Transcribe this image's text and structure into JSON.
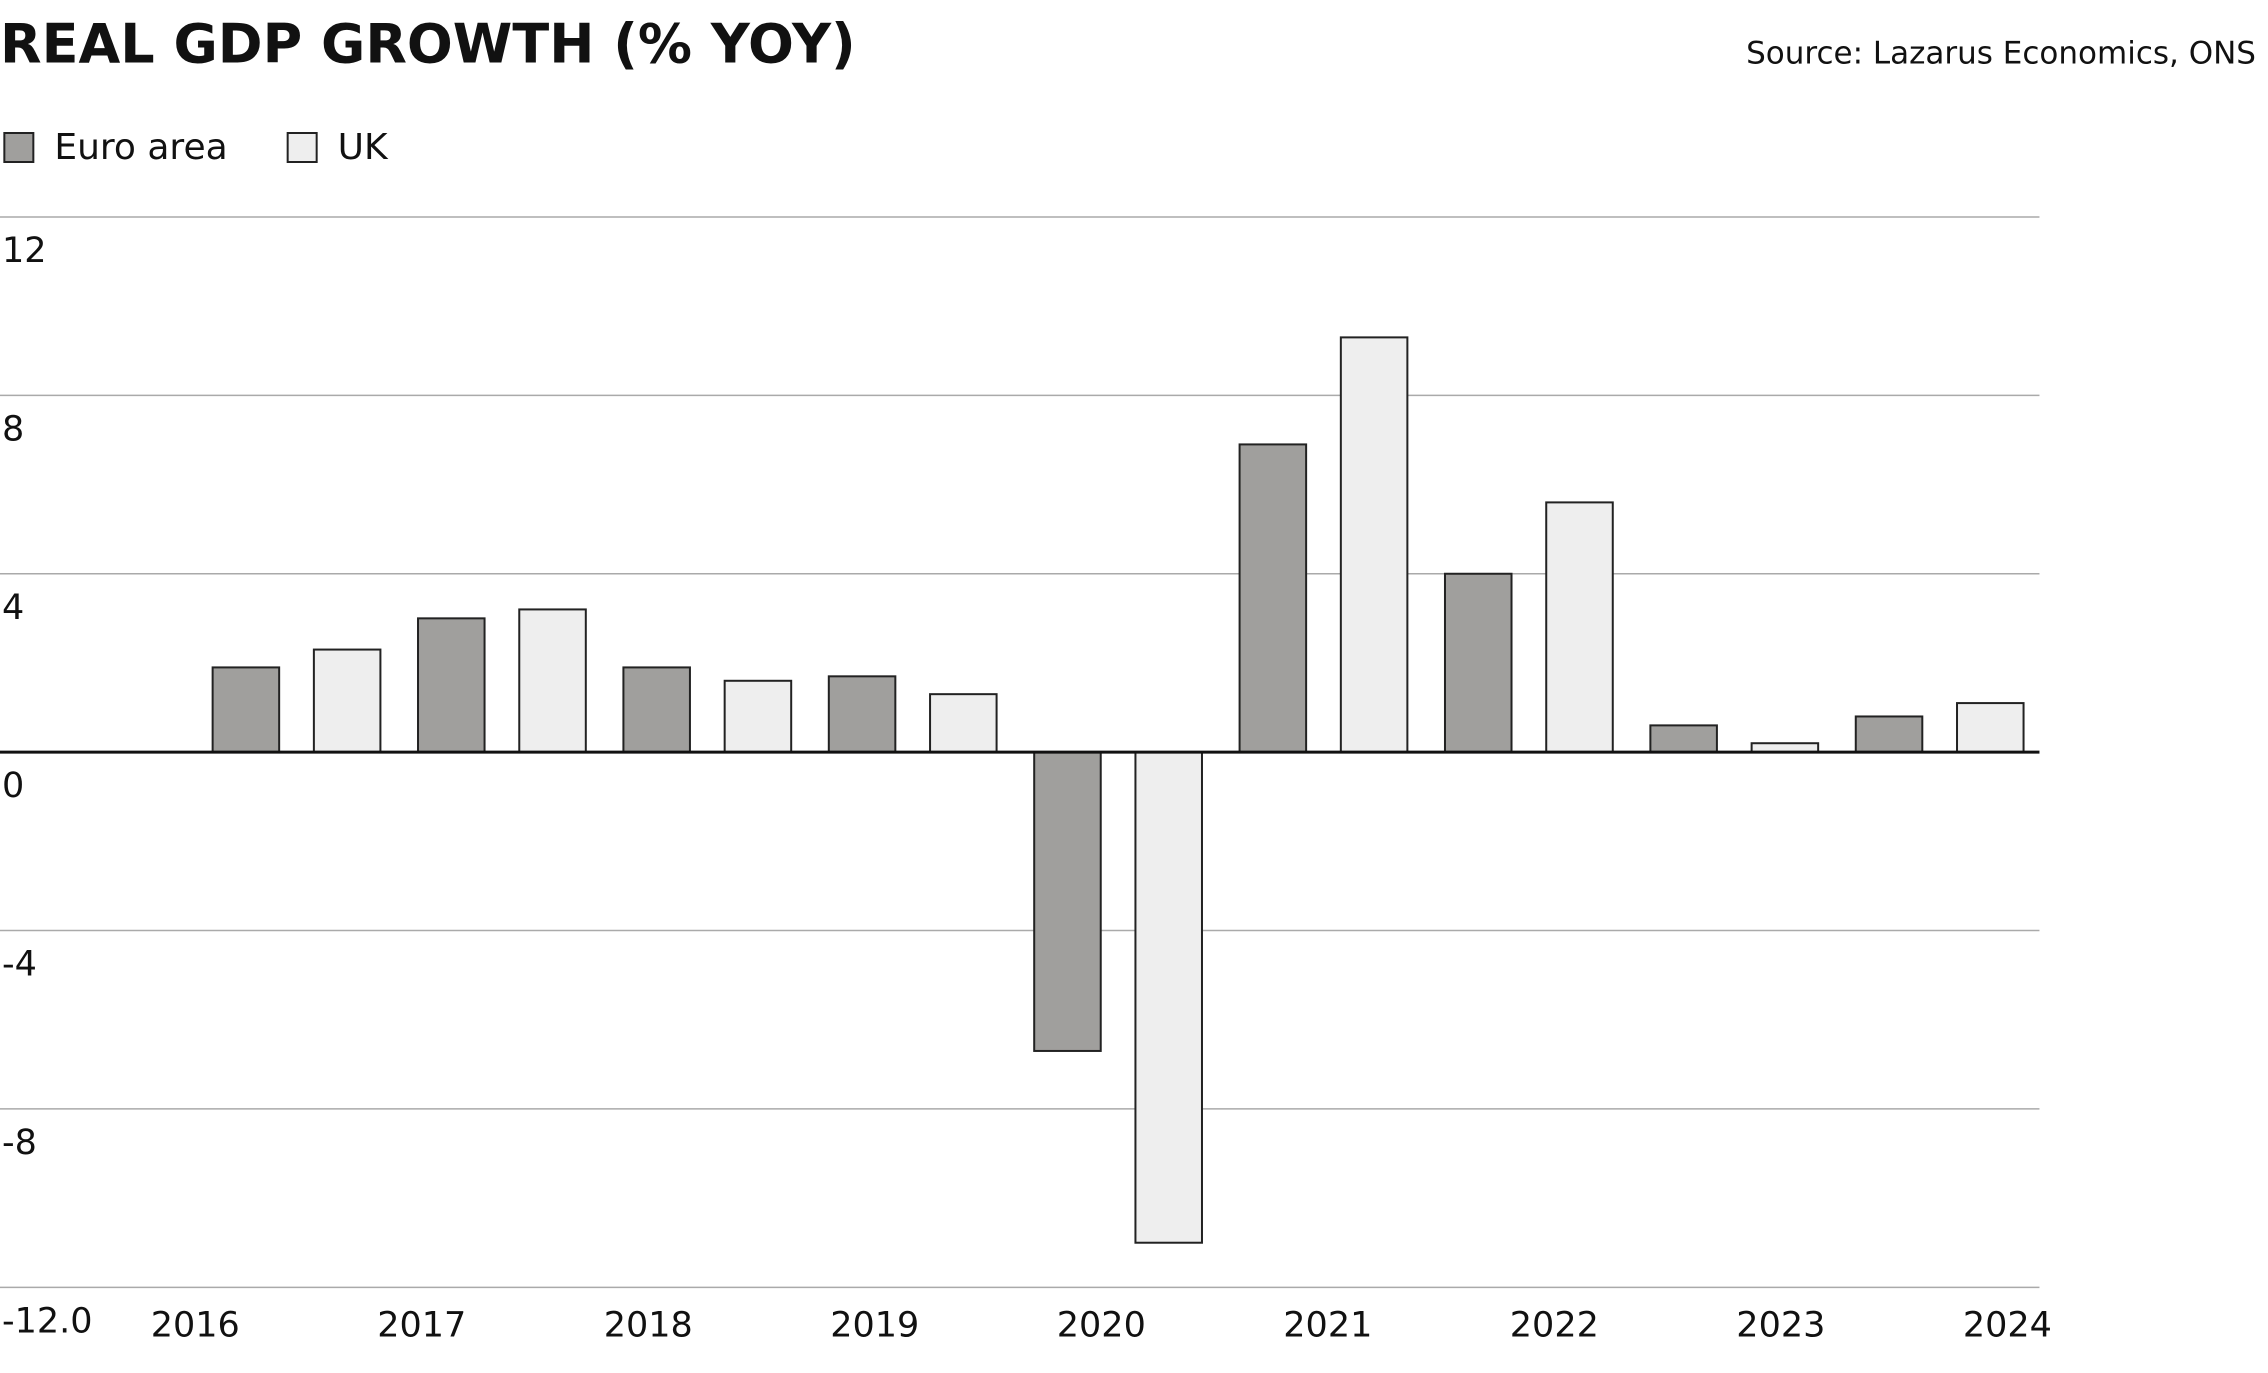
{
  "chart_data": {
    "type": "bar",
    "title": "REAL GDP GROWTH (% YOY)",
    "source": "Source: Lazarus Economics, ONS",
    "categories": [
      "2016",
      "2017",
      "2018",
      "2019",
      "2020",
      "2021",
      "2022",
      "2023",
      "2024"
    ],
    "series": [
      {
        "name": "Euro area",
        "color": "#a09f9d",
        "values": [
          1.9,
          3.0,
          1.9,
          1.7,
          -6.7,
          6.9,
          4.0,
          0.6,
          0.8
        ]
      },
      {
        "name": "UK",
        "color": "#eeeeee",
        "values": [
          2.3,
          3.2,
          1.6,
          1.3,
          -11.0,
          9.3,
          5.6,
          0.2,
          1.1
        ]
      }
    ],
    "ylim": [
      -12,
      12
    ],
    "yticks": [
      {
        "value": -12,
        "label": "-12.0"
      },
      -8,
      -4,
      0,
      4,
      8,
      12
    ],
    "grid": true,
    "legend": "top-left"
  }
}
